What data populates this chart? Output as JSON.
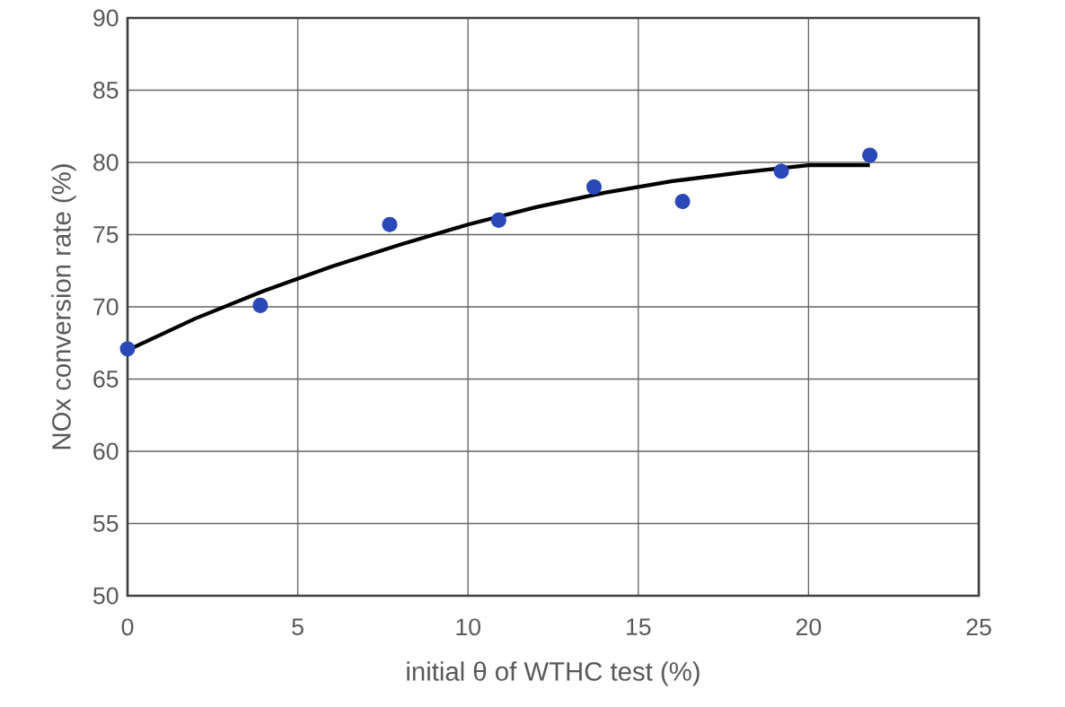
{
  "chart_data": {
    "type": "scatter",
    "xlabel": "initial θ of WTHC test (%)",
    "ylabel": "NOx conversion rate (%)",
    "xlim": [
      0,
      25
    ],
    "ylim": [
      50,
      90
    ],
    "xticks": [
      0,
      5,
      10,
      15,
      20,
      25
    ],
    "yticks": [
      50,
      55,
      60,
      65,
      70,
      75,
      80,
      85,
      90
    ],
    "grid": true,
    "marker": "circle",
    "series": [
      {
        "color": "#2a48b8",
        "x": [
          0,
          3.9,
          7.7,
          10.9,
          13.7,
          16.3,
          19.2,
          21.8
        ],
        "values": [
          67.1,
          70.1,
          75.7,
          76.0,
          78.3,
          77.3,
          79.4,
          80.5
        ]
      },
      {
        "type": "line",
        "color": "#000000",
        "marker": "none",
        "x": [
          0,
          2,
          4,
          6,
          8,
          10,
          12,
          14,
          16,
          18,
          20,
          21.8
        ],
        "values": [
          67.0,
          69.2,
          71.1,
          72.8,
          74.3,
          75.7,
          76.9,
          77.9,
          78.7,
          79.3,
          79.8,
          79.8
        ]
      }
    ]
  }
}
